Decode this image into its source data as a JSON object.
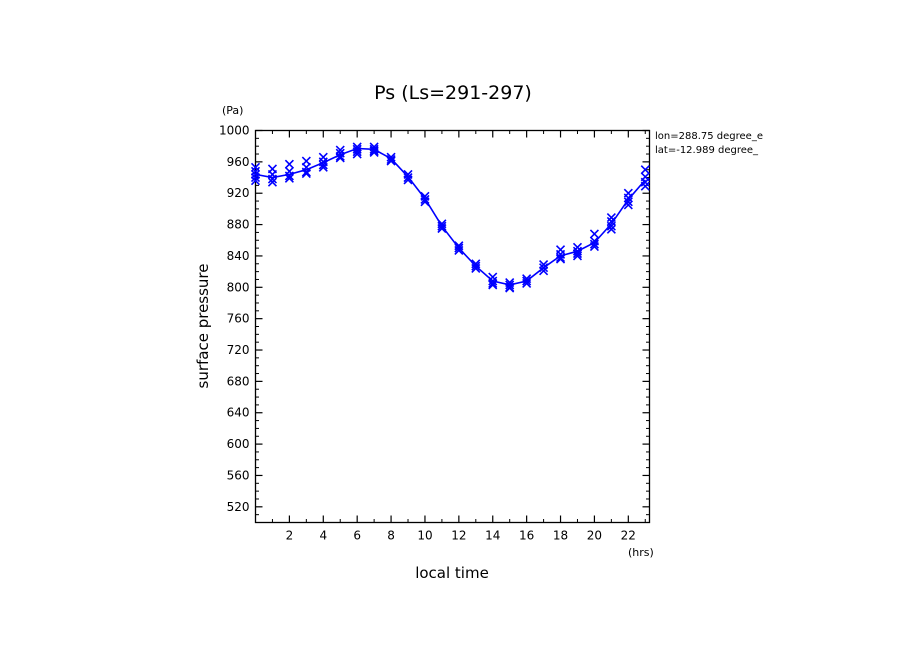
{
  "chart_data": {
    "type": "line",
    "title": "Ps (Ls=291-297)",
    "xlabel": "local time",
    "ylabel": "surface pressure",
    "x_unit": "(hrs)",
    "y_unit": "(Pa)",
    "xlim": [
      0,
      23.25
    ],
    "ylim": [
      500,
      1000
    ],
    "xticks": [
      2,
      4,
      6,
      8,
      10,
      12,
      14,
      16,
      18,
      20,
      22
    ],
    "yticks": [
      520,
      560,
      600,
      640,
      680,
      720,
      760,
      800,
      840,
      880,
      920,
      960,
      1000
    ],
    "annotations": [
      "lon=288.75 degree_e",
      "lat=-12.989 degree_"
    ],
    "grid": false,
    "line_color": "#0000ff",
    "mean_line": {
      "x": [
        0,
        1,
        2,
        3,
        4,
        5,
        6,
        7,
        8,
        9,
        10,
        11,
        12,
        13,
        14,
        15,
        16,
        17,
        18,
        19,
        20,
        21,
        22,
        23
      ],
      "y": [
        944,
        940,
        944,
        950,
        959,
        969,
        977,
        976,
        964,
        941,
        913,
        878,
        850,
        827,
        808,
        803,
        808,
        825,
        840,
        846,
        857,
        881,
        912,
        937
      ]
    },
    "scatter": {
      "marker": "x",
      "x": [
        0,
        0,
        0,
        0,
        0,
        1,
        1,
        1,
        1,
        2,
        2,
        2,
        2,
        3,
        3,
        3,
        3,
        4,
        4,
        4,
        4,
        5,
        5,
        5,
        5,
        6,
        6,
        6,
        6,
        7,
        7,
        7,
        7,
        8,
        8,
        8,
        9,
        9,
        9,
        10,
        10,
        10,
        11,
        11,
        11,
        12,
        12,
        12,
        13,
        13,
        13,
        14,
        14,
        14,
        14,
        15,
        15,
        15,
        15,
        16,
        16,
        16,
        17,
        17,
        17,
        18,
        18,
        18,
        18,
        19,
        19,
        19,
        19,
        20,
        20,
        20,
        20,
        21,
        21,
        21,
        21,
        22,
        22,
        22,
        22,
        23,
        23,
        23,
        23
      ],
      "y": [
        953,
        948,
        944,
        940,
        936,
        951,
        944,
        938,
        934,
        957,
        948,
        942,
        939,
        961,
        953,
        947,
        945,
        966,
        960,
        956,
        953,
        975,
        971,
        967,
        965,
        979,
        976,
        973,
        970,
        979,
        976,
        974,
        972,
        966,
        963,
        961,
        944,
        940,
        937,
        916,
        912,
        909,
        881,
        878,
        875,
        853,
        850,
        847,
        830,
        827,
        824,
        813,
        808,
        805,
        803,
        806,
        803,
        800,
        799,
        811,
        808,
        805,
        829,
        825,
        821,
        848,
        842,
        838,
        836,
        851,
        846,
        843,
        840,
        868,
        859,
        855,
        852,
        889,
        884,
        878,
        874,
        920,
        914,
        909,
        905,
        950,
        941,
        934,
        929
      ]
    }
  }
}
